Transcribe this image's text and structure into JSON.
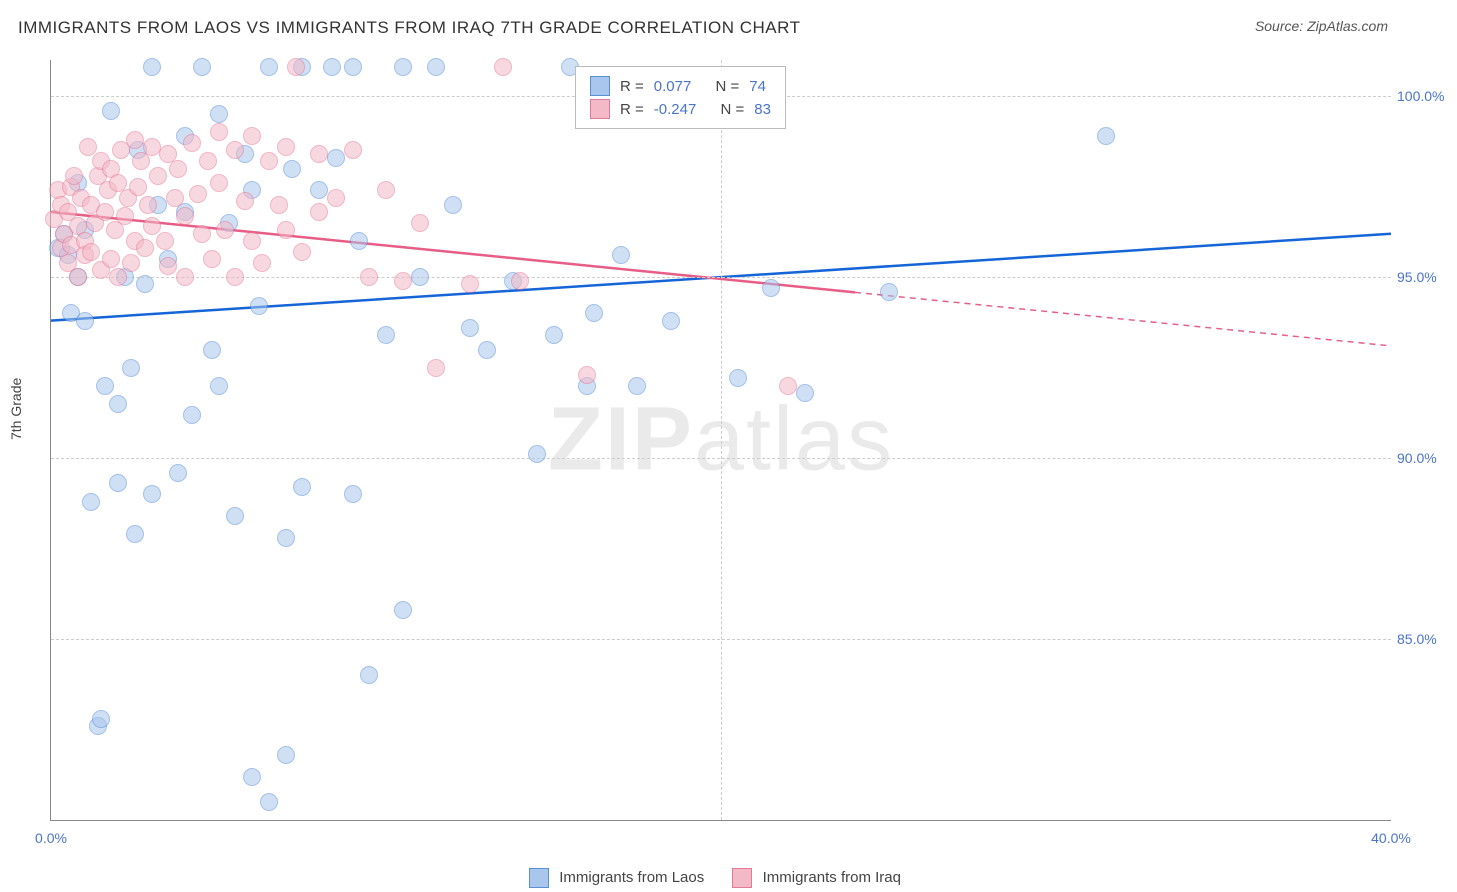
{
  "title": "IMMIGRANTS FROM LAOS VS IMMIGRANTS FROM IRAQ 7TH GRADE CORRELATION CHART",
  "source": "Source: ZipAtlas.com",
  "ylabel": "7th Grade",
  "watermark_a": "ZIP",
  "watermark_b": "atlas",
  "chart": {
    "type": "scatter",
    "xlim": [
      0,
      40
    ],
    "ylim": [
      80,
      101
    ],
    "xticks": [
      0,
      20,
      40
    ],
    "xtick_labels": [
      "0.0%",
      "",
      "40.0%"
    ],
    "yticks": [
      85,
      90,
      95,
      100
    ],
    "ytick_labels": [
      "85.0%",
      "90.0%",
      "95.0%",
      "100.0%"
    ],
    "grid_color": "#cccccc",
    "background": "#ffffff",
    "marker_radius": 8,
    "series": [
      {
        "name": "Immigrants from Laos",
        "fill": "#a9c6ec",
        "stroke": "#5a8fd6",
        "line_color": "#1565d8",
        "R": "0.077",
        "N": "74",
        "trend": {
          "y0": 93.8,
          "y1": 96.2,
          "dash_from_x": 40
        },
        "points": [
          [
            0.2,
            95.8
          ],
          [
            0.4,
            96.2
          ],
          [
            0.5,
            95.6
          ],
          [
            0.6,
            94.0
          ],
          [
            0.8,
            95.0
          ],
          [
            0.8,
            97.6
          ],
          [
            1.0,
            93.8
          ],
          [
            1.0,
            96.3
          ],
          [
            1.2,
            88.8
          ],
          [
            1.4,
            82.6
          ],
          [
            1.5,
            82.8
          ],
          [
            1.6,
            92.0
          ],
          [
            1.8,
            99.6
          ],
          [
            2.0,
            91.5
          ],
          [
            2.0,
            89.3
          ],
          [
            2.2,
            95.0
          ],
          [
            2.4,
            92.5
          ],
          [
            2.5,
            87.9
          ],
          [
            2.6,
            98.5
          ],
          [
            2.8,
            94.8
          ],
          [
            3.0,
            89.0
          ],
          [
            3.0,
            100.8
          ],
          [
            3.2,
            97.0
          ],
          [
            3.5,
            95.5
          ],
          [
            3.8,
            89.6
          ],
          [
            4.0,
            96.8
          ],
          [
            4.0,
            98.9
          ],
          [
            4.2,
            91.2
          ],
          [
            4.5,
            100.8
          ],
          [
            4.8,
            93.0
          ],
          [
            5.0,
            92.0
          ],
          [
            5.0,
            99.5
          ],
          [
            5.3,
            96.5
          ],
          [
            5.5,
            88.4
          ],
          [
            5.8,
            98.4
          ],
          [
            6.0,
            97.4
          ],
          [
            6.0,
            81.2
          ],
          [
            6.2,
            94.2
          ],
          [
            6.5,
            80.5
          ],
          [
            6.5,
            100.8
          ],
          [
            7.0,
            81.8
          ],
          [
            7.0,
            87.8
          ],
          [
            7.2,
            98.0
          ],
          [
            7.5,
            100.8
          ],
          [
            7.5,
            89.2
          ],
          [
            8.0,
            97.4
          ],
          [
            8.4,
            100.8
          ],
          [
            8.5,
            98.3
          ],
          [
            9.0,
            89.0
          ],
          [
            9.0,
            100.8
          ],
          [
            9.2,
            96.0
          ],
          [
            9.5,
            84.0
          ],
          [
            10.0,
            93.4
          ],
          [
            10.5,
            85.8
          ],
          [
            10.5,
            100.8
          ],
          [
            11.0,
            95.0
          ],
          [
            11.5,
            100.8
          ],
          [
            12.0,
            97.0
          ],
          [
            12.5,
            93.6
          ],
          [
            13.0,
            93.0
          ],
          [
            13.8,
            94.9
          ],
          [
            14.5,
            90.1
          ],
          [
            15.0,
            93.4
          ],
          [
            15.5,
            100.8
          ],
          [
            16.0,
            92.0
          ],
          [
            16.2,
            94.0
          ],
          [
            17.0,
            95.6
          ],
          [
            17.5,
            92.0
          ],
          [
            18.5,
            93.8
          ],
          [
            20.5,
            92.2
          ],
          [
            21.5,
            94.7
          ],
          [
            22.5,
            91.8
          ],
          [
            25.0,
            94.6
          ],
          [
            31.5,
            98.9
          ]
        ]
      },
      {
        "name": "Immigrants from Iraq",
        "fill": "#f3b9c7",
        "stroke": "#e47a98",
        "line_color": "#e75d86",
        "R": "-0.247",
        "N": "83",
        "trend": {
          "y0": 96.8,
          "y1": 93.1,
          "dash_from_x": 24
        },
        "points": [
          [
            0.1,
            96.6
          ],
          [
            0.2,
            97.4
          ],
          [
            0.3,
            95.8
          ],
          [
            0.3,
            97.0
          ],
          [
            0.4,
            96.2
          ],
          [
            0.5,
            95.4
          ],
          [
            0.5,
            96.8
          ],
          [
            0.6,
            97.5
          ],
          [
            0.6,
            95.9
          ],
          [
            0.7,
            97.8
          ],
          [
            0.8,
            96.4
          ],
          [
            0.8,
            95.0
          ],
          [
            0.9,
            97.2
          ],
          [
            1.0,
            96.0
          ],
          [
            1.0,
            95.6
          ],
          [
            1.1,
            98.6
          ],
          [
            1.2,
            97.0
          ],
          [
            1.2,
            95.7
          ],
          [
            1.3,
            96.5
          ],
          [
            1.4,
            97.8
          ],
          [
            1.5,
            95.2
          ],
          [
            1.5,
            98.2
          ],
          [
            1.6,
            96.8
          ],
          [
            1.7,
            97.4
          ],
          [
            1.8,
            95.5
          ],
          [
            1.8,
            98.0
          ],
          [
            1.9,
            96.3
          ],
          [
            2.0,
            97.6
          ],
          [
            2.0,
            95.0
          ],
          [
            2.1,
            98.5
          ],
          [
            2.2,
            96.7
          ],
          [
            2.3,
            97.2
          ],
          [
            2.4,
            95.4
          ],
          [
            2.5,
            98.8
          ],
          [
            2.5,
            96.0
          ],
          [
            2.6,
            97.5
          ],
          [
            2.7,
            98.2
          ],
          [
            2.8,
            95.8
          ],
          [
            2.9,
            97.0
          ],
          [
            3.0,
            96.4
          ],
          [
            3.0,
            98.6
          ],
          [
            3.2,
            97.8
          ],
          [
            3.4,
            96.0
          ],
          [
            3.5,
            98.4
          ],
          [
            3.5,
            95.3
          ],
          [
            3.7,
            97.2
          ],
          [
            3.8,
            98.0
          ],
          [
            4.0,
            96.7
          ],
          [
            4.0,
            95.0
          ],
          [
            4.2,
            98.7
          ],
          [
            4.4,
            97.3
          ],
          [
            4.5,
            96.2
          ],
          [
            4.7,
            98.2
          ],
          [
            4.8,
            95.5
          ],
          [
            5.0,
            97.6
          ],
          [
            5.0,
            99.0
          ],
          [
            5.2,
            96.3
          ],
          [
            5.5,
            98.5
          ],
          [
            5.5,
            95.0
          ],
          [
            5.8,
            97.1
          ],
          [
            6.0,
            98.9
          ],
          [
            6.0,
            96.0
          ],
          [
            6.3,
            95.4
          ],
          [
            6.5,
            98.2
          ],
          [
            6.8,
            97.0
          ],
          [
            7.0,
            98.6
          ],
          [
            7.0,
            96.3
          ],
          [
            7.3,
            100.8
          ],
          [
            7.5,
            95.7
          ],
          [
            8.0,
            98.4
          ],
          [
            8.0,
            96.8
          ],
          [
            8.5,
            97.2
          ],
          [
            9.0,
            98.5
          ],
          [
            9.5,
            95.0
          ],
          [
            10.0,
            97.4
          ],
          [
            10.5,
            94.9
          ],
          [
            11.0,
            96.5
          ],
          [
            11.5,
            92.5
          ],
          [
            12.5,
            94.8
          ],
          [
            13.5,
            100.8
          ],
          [
            14.0,
            94.9
          ],
          [
            16.0,
            92.3
          ],
          [
            22.0,
            92.0
          ]
        ]
      }
    ]
  },
  "bottom_legend": {
    "a_label": "Immigrants from Laos",
    "b_label": "Immigrants from Iraq"
  },
  "stats_labels": {
    "R": "R =",
    "N": "N ="
  }
}
